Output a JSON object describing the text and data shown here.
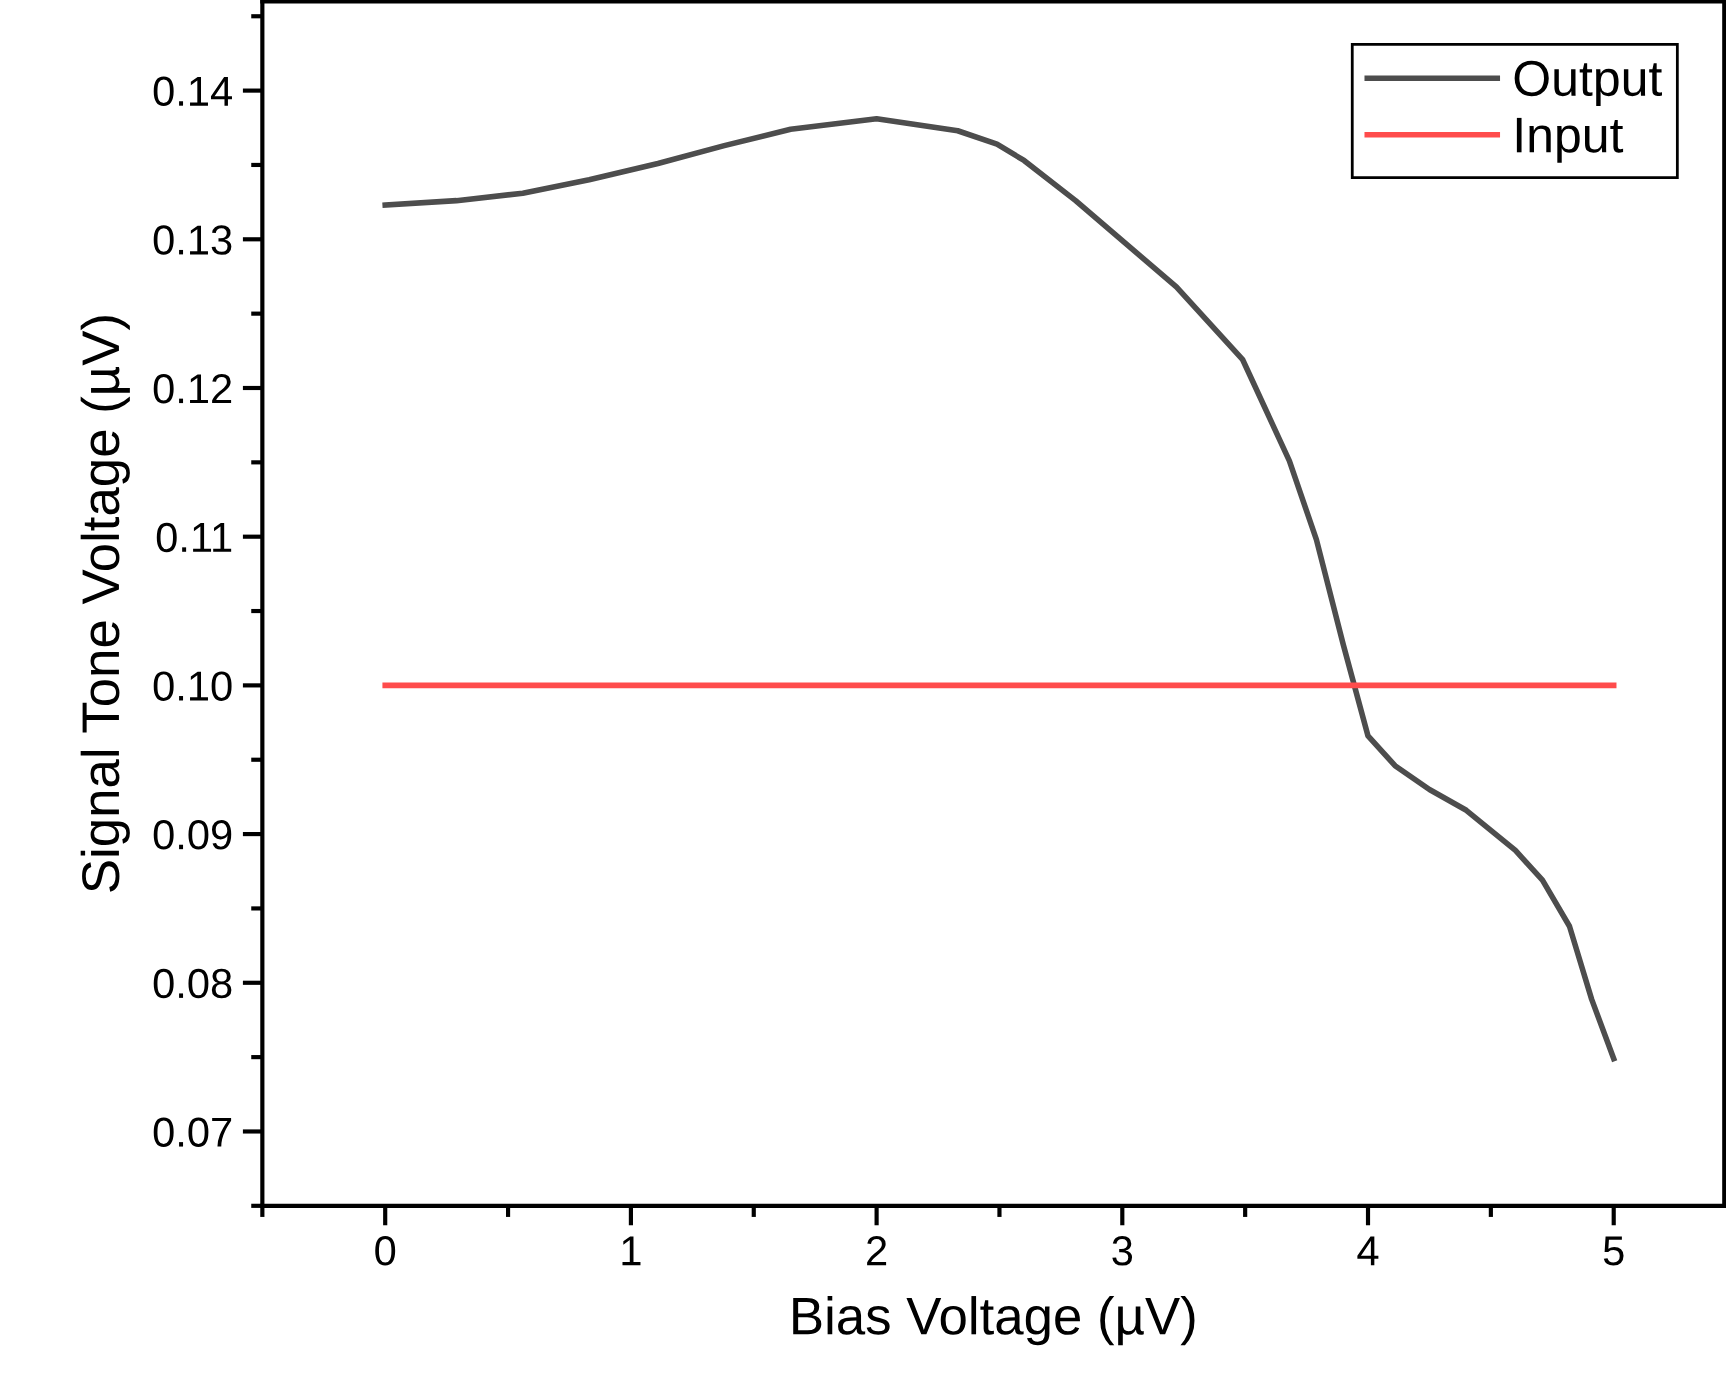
{
  "chart_data": {
    "type": "line",
    "xlabel": "Bias Voltage (µV)",
    "ylabel": "Signal Tone Voltage (µV)",
    "xlim": [
      -0.5,
      5.45
    ],
    "xticks": [
      0,
      1,
      2,
      3,
      4,
      5
    ],
    "ylim": [
      0.065,
      0.146
    ],
    "yticks": [
      {
        "value": 0.07,
        "label": "0.07"
      },
      {
        "value": 0.08,
        "label": "0.08"
      },
      {
        "value": 0.09,
        "label": "0.09"
      },
      {
        "value": 0.1,
        "label": "0.10"
      },
      {
        "value": 0.11,
        "label": "0.11"
      },
      {
        "value": 0.12,
        "label": "0.12"
      },
      {
        "value": 0.13,
        "label": "0.13"
      },
      {
        "value": 0.14,
        "label": "0.14"
      }
    ],
    "grid": false,
    "legend": "top right",
    "marker": "none",
    "line_style": "solid",
    "series": [
      {
        "name": "Output",
        "color": "#4d4d4d",
        "x": [
          0.0,
          0.29,
          0.56,
          0.83,
          1.11,
          1.38,
          1.65,
          2.0,
          2.33,
          2.49,
          2.6,
          2.81,
          3.22,
          3.49,
          3.68,
          3.79,
          3.9,
          4.0,
          4.11,
          4.25,
          4.4,
          4.6,
          4.71,
          4.82,
          4.91,
          5.0
        ],
        "values": [
          0.1323,
          0.1326,
          0.1331,
          0.134,
          0.1351,
          0.1363,
          0.1374,
          0.1381,
          0.1373,
          0.1364,
          0.1353,
          0.1326,
          0.1268,
          0.1219,
          0.1151,
          0.1098,
          0.1027,
          0.0966,
          0.0946,
          0.093,
          0.0916,
          0.0889,
          0.0869,
          0.0838,
          0.0789,
          0.0749
        ]
      },
      {
        "name": "Input",
        "color": "#ff4c4c",
        "x": [
          0,
          5
        ],
        "values": [
          0.1,
          0.1
        ]
      }
    ]
  }
}
